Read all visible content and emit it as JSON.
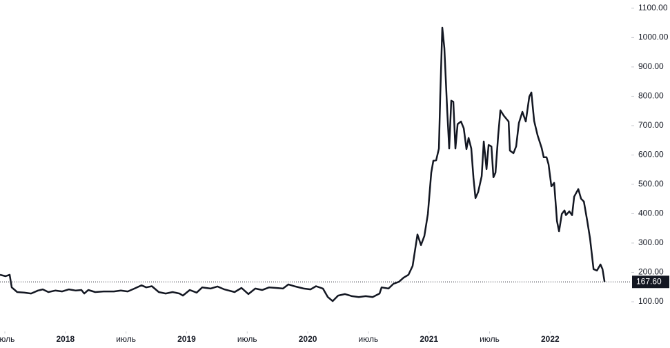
{
  "chart_data": {
    "type": "line",
    "x": [
      2017.46,
      2017.506,
      2017.54,
      2017.557,
      2017.602,
      2017.659,
      2017.716,
      2017.773,
      2017.813,
      2017.859,
      2017.916,
      2017.973,
      2018.029,
      2018.086,
      2018.132,
      2018.155,
      2018.189,
      2018.246,
      2018.314,
      2018.4,
      2018.457,
      2018.514,
      2018.57,
      2018.627,
      2018.667,
      2018.713,
      2018.77,
      2018.827,
      2018.884,
      2018.941,
      2018.969,
      2019.026,
      2019.083,
      2019.129,
      2019.197,
      2019.254,
      2019.311,
      2019.396,
      2019.453,
      2019.51,
      2019.567,
      2019.624,
      2019.681,
      2019.738,
      2019.795,
      2019.84,
      2019.897,
      2019.966,
      2020.023,
      2020.068,
      2020.125,
      2020.165,
      2020.205,
      2020.25,
      2020.307,
      2020.364,
      2020.421,
      2020.478,
      2020.535,
      2020.592,
      2020.609,
      2020.666,
      2020.706,
      2020.752,
      2020.791,
      2020.831,
      2020.865,
      2020.905,
      2020.934,
      2020.962,
      2020.991,
      2021.019,
      2021.036,
      2021.059,
      2021.082,
      2021.093,
      2021.11,
      2021.127,
      2021.15,
      2021.167,
      2021.184,
      2021.201,
      2021.218,
      2021.236,
      2021.264,
      2021.287,
      2021.309,
      2021.327,
      2021.349,
      2021.367,
      2021.384,
      2021.406,
      2021.435,
      2021.452,
      2021.475,
      2021.492,
      2021.515,
      2021.532,
      2021.549,
      2021.571,
      2021.589,
      2021.617,
      2021.657,
      2021.668,
      2021.697,
      2021.719,
      2021.742,
      2021.771,
      2021.799,
      2021.828,
      2021.845,
      2021.868,
      2021.896,
      2021.93,
      2021.947,
      2021.97,
      2021.987,
      2022.01,
      2022.033,
      2022.056,
      2022.073,
      2022.096,
      2022.118,
      2022.13,
      2022.158,
      2022.181,
      2022.198,
      2022.232,
      2022.255,
      2022.278,
      2022.306,
      2022.329,
      2022.358,
      2022.386,
      2022.415,
      2022.432,
      2022.449
    ],
    "series": [
      {
        "color": "#131722",
        "values": [
          192,
          187,
          192,
          149,
          133,
          131,
          128,
          138,
          142,
          133,
          138,
          135,
          142,
          138,
          140,
          128,
          140,
          133,
          135,
          135,
          138,
          135,
          145,
          156,
          149,
          153,
          133,
          128,
          133,
          128,
          121,
          140,
          131,
          149,
          145,
          152,
          142,
          133,
          147,
          126,
          145,
          140,
          149,
          147,
          145,
          159,
          152,
          145,
          142,
          153,
          145,
          116,
          102,
          121,
          126,
          119,
          116,
          119,
          116,
          128,
          149,
          145,
          161,
          168,
          182,
          192,
          222,
          329,
          293,
          324,
          399,
          540,
          580,
          582,
          622,
          799,
          1034,
          964,
          752,
          622,
          785,
          781,
          622,
          705,
          714,
          691,
          620,
          658,
          622,
          521,
          453,
          474,
          528,
          646,
          552,
          634,
          629,
          524,
          540,
          667,
          752,
          734,
          714,
          615,
          606,
          629,
          709,
          747,
          714,
          799,
          813,
          716,
          667,
          624,
          592,
          592,
          568,
          493,
          505,
          375,
          340,
          399,
          411,
          395,
          408,
          395,
          458,
          484,
          451,
          441,
          375,
          316,
          211,
          206,
          227,
          211,
          167.6
        ]
      }
    ],
    "last_price": {
      "value": 167.6,
      "label": "167.60"
    },
    "xlim": [
      2017.46,
      2022.67
    ],
    "xticks": [
      {
        "value": 2017.5,
        "label": "июль"
      },
      2018,
      {
        "value": 2018.5,
        "label": "июль"
      },
      2019,
      {
        "value": 2019.5,
        "label": "июль"
      },
      2020,
      {
        "value": 2020.5,
        "label": "июль"
      },
      2021,
      {
        "value": 2021.5,
        "label": "июль"
      },
      2022
    ],
    "ylim": [
      0,
      1128
    ],
    "yticks": [
      {
        "value": 100,
        "label": "100.00"
      },
      {
        "value": 200,
        "label": "200.00"
      },
      {
        "value": 300,
        "label": "300.00"
      },
      {
        "value": 400,
        "label": "400.00"
      },
      {
        "value": 500,
        "label": "500.00"
      },
      {
        "value": 600,
        "label": "600.00"
      },
      {
        "value": 700,
        "label": "700.00"
      },
      {
        "value": 800,
        "label": "800.00"
      },
      {
        "value": 900,
        "label": "900.00"
      },
      {
        "value": 1000,
        "label": "1000.00"
      },
      {
        "value": 1100,
        "label": "1100.00"
      }
    ],
    "grid": false
  }
}
